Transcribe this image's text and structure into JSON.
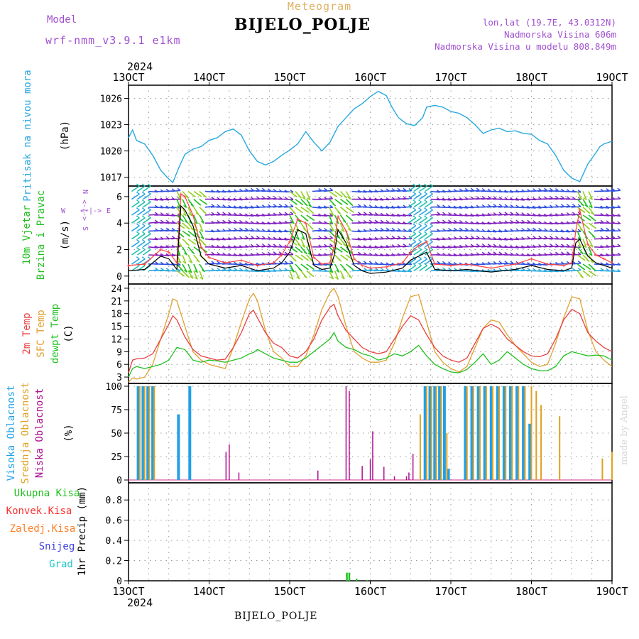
{
  "header": {
    "model_label": "Model",
    "model_name": "wrf-nmm_v3.9.1 e1km",
    "title": "Meteogram",
    "station": "BIJELO_POLJE",
    "lonlat": "lon,lat (19.7E, 43.0312N)",
    "altitude": "Nadmorska Visina 606m",
    "model_altitude": "Nadmorska Visina u modelu 808.849m"
  },
  "footer": {
    "station": "BIJELO_POLJE",
    "credit": "made by Angel"
  },
  "colors": {
    "pressure": "#29a8e0",
    "wind_speed": "#000000",
    "gust": "#ff4040",
    "t2m": "#e84040",
    "tsfc": "#e0a030",
    "dewpt": "#20c020",
    "cloud_high": "#20a0e8",
    "cloud_mid": "#e0a020",
    "cloud_low": "#b01090",
    "precip_total": "#20c020",
    "precip_conv": "#ff3030",
    "precip_frozen": "#ff7f27",
    "snow": "#4040e0",
    "hail": "#20c8c8"
  },
  "chart_data": [
    {
      "type": "line",
      "id": "pressure",
      "ylabel": "Pritisak na nivou mora",
      "unit": "(hPa)",
      "x_labels_top": [
        "13OCT",
        "14OCT",
        "15OCT",
        "16OCT",
        "17OCT",
        "18OCT",
        "19OCT"
      ],
      "x_labels_bottom": [
        "13OCT",
        "14OCT",
        "15OCT",
        "16OCT",
        "17OCT",
        "18OCT",
        "19OCT"
      ],
      "year": "2024",
      "xlim_days": [
        13,
        19
      ],
      "ylim": [
        1016,
        1027.5
      ],
      "yticks": [
        1017,
        1020,
        1023,
        1026
      ],
      "x": [
        13.0,
        13.05,
        13.1,
        13.15,
        13.2,
        13.3,
        13.4,
        13.5,
        13.55,
        13.62,
        13.7,
        13.8,
        13.9,
        14.0,
        14.1,
        14.2,
        14.3,
        14.4,
        14.5,
        14.6,
        14.7,
        14.8,
        14.9,
        15.0,
        15.1,
        15.2,
        15.3,
        15.4,
        15.5,
        15.6,
        15.7,
        15.8,
        15.9,
        16.0,
        16.1,
        16.2,
        16.27,
        16.35,
        16.45,
        16.55,
        16.65,
        16.7,
        16.8,
        16.9,
        17.0,
        17.1,
        17.2,
        17.3,
        17.4,
        17.5,
        17.6,
        17.7,
        17.8,
        17.9,
        18.0,
        18.1,
        18.2,
        18.3,
        18.4,
        18.5,
        18.6,
        18.7,
        18.8,
        18.85,
        18.9,
        19.0
      ],
      "series": [
        {
          "name": "Pritisak na nivou mora",
          "values": [
            1021.5,
            1022.4,
            1021.2,
            1021.0,
            1020.8,
            1019.5,
            1017.8,
            1016.8,
            1016.4,
            1018.0,
            1019.6,
            1020.2,
            1020.5,
            1021.2,
            1021.5,
            1022.2,
            1022.5,
            1021.8,
            1020.0,
            1018.8,
            1018.4,
            1018.8,
            1019.5,
            1020.1,
            1020.8,
            1022.2,
            1021.0,
            1020.0,
            1021.0,
            1022.8,
            1023.8,
            1024.8,
            1025.4,
            1026.2,
            1026.8,
            1026.3,
            1025.0,
            1023.8,
            1023.1,
            1022.9,
            1023.8,
            1025.0,
            1025.2,
            1025.0,
            1024.5,
            1024.3,
            1023.8,
            1023.0,
            1022.0,
            1022.4,
            1022.6,
            1022.2,
            1022.3,
            1022.0,
            1021.9,
            1021.2,
            1020.8,
            1019.5,
            1017.8,
            1016.9,
            1016.5,
            1018.5,
            1019.8,
            1020.5,
            1020.8,
            1021.1
          ]
        }
      ]
    },
    {
      "type": "line",
      "id": "wind",
      "ylabel": "10m Vjetar",
      "ylabel2": "Brzina i Pravac",
      "unit": "(m/s)",
      "compass": [
        "W",
        "<",
        "-",
        "|",
        "-",
        ">",
        "E",
        "N",
        "S"
      ],
      "ylim": [
        -0.6,
        6.8
      ],
      "yticks": [
        0,
        2,
        4,
        6
      ],
      "barb_rows": [
        0.4,
        0.9,
        1.6,
        2.2,
        2.8,
        3.4,
        4.0,
        4.6,
        5.2,
        5.8,
        6.4
      ],
      "x": [
        13.0,
        13.2,
        13.4,
        13.5,
        13.6,
        13.65,
        13.7,
        13.8,
        13.9,
        14.0,
        14.2,
        14.4,
        14.6,
        14.8,
        14.9,
        15.0,
        15.1,
        15.2,
        15.3,
        15.4,
        15.5,
        15.55,
        15.6,
        15.7,
        15.8,
        15.9,
        16.0,
        16.2,
        16.4,
        16.5,
        16.6,
        16.7,
        16.8,
        17.0,
        17.2,
        17.5,
        17.8,
        18.0,
        18.2,
        18.4,
        18.5,
        18.55,
        18.6,
        18.7,
        18.8,
        18.9,
        19.0
      ],
      "series": [
        {
          "name": "wind speed",
          "values": [
            0.4,
            0.5,
            1.5,
            1.3,
            0.5,
            5.3,
            5.0,
            3.8,
            1.5,
            0.9,
            0.6,
            0.8,
            0.4,
            0.6,
            1.0,
            1.8,
            3.5,
            3.2,
            0.8,
            0.5,
            0.6,
            1.5,
            3.5,
            2.5,
            0.8,
            0.4,
            0.2,
            0.3,
            0.6,
            1.2,
            1.5,
            1.8,
            0.5,
            0.4,
            0.5,
            0.3,
            0.5,
            0.8,
            0.5,
            0.4,
            0.6,
            2.5,
            2.8,
            1.5,
            1.0,
            0.8,
            0.6
          ]
        },
        {
          "name": "wind gust",
          "values": [
            0.8,
            0.9,
            2.0,
            1.8,
            1.0,
            6.2,
            6.0,
            4.6,
            2.2,
            1.4,
            1.0,
            1.2,
            0.8,
            1.0,
            1.6,
            2.6,
            4.3,
            4.0,
            1.4,
            0.9,
            1.0,
            2.2,
            4.5,
            3.4,
            1.3,
            0.8,
            0.6,
            0.7,
            1.0,
            1.8,
            2.3,
            2.6,
            0.9,
            0.8,
            0.9,
            0.6,
            0.9,
            1.3,
            0.9,
            0.8,
            1.0,
            3.4,
            5.0,
            2.4,
            1.6,
            1.3,
            1.0
          ]
        }
      ]
    },
    {
      "type": "line",
      "id": "temperature",
      "ylabel": "2m Temp",
      "ylabel2": "SFC Temp",
      "ylabel3": "dewpt Temp",
      "unit": "(C)",
      "ylim": [
        1.5,
        25
      ],
      "yticks": [
        3,
        6,
        9,
        12,
        15,
        18,
        21,
        24
      ],
      "x": [
        13.0,
        13.05,
        13.1,
        13.2,
        13.3,
        13.4,
        13.5,
        13.55,
        13.6,
        13.7,
        13.8,
        13.9,
        14.0,
        14.1,
        14.2,
        14.3,
        14.4,
        14.5,
        14.55,
        14.6,
        14.7,
        14.8,
        14.9,
        15.0,
        15.1,
        15.2,
        15.3,
        15.4,
        15.5,
        15.55,
        15.6,
        15.7,
        15.8,
        15.9,
        16.0,
        16.1,
        16.2,
        16.3,
        16.4,
        16.5,
        16.6,
        16.7,
        16.8,
        16.9,
        17.0,
        17.1,
        17.2,
        17.3,
        17.4,
        17.5,
        17.6,
        17.7,
        17.8,
        17.9,
        18.0,
        18.1,
        18.2,
        18.3,
        18.4,
        18.5,
        18.6,
        18.7,
        18.8,
        18.9,
        19.0
      ],
      "series": [
        {
          "name": "2m Temp",
          "values": [
            4.0,
            7.0,
            7.3,
            7.5,
            8.5,
            12.0,
            15.5,
            17.5,
            16.5,
            12.5,
            9.5,
            8.0,
            7.5,
            7.0,
            7.2,
            10.0,
            13.5,
            18.0,
            18.8,
            17.0,
            13.5,
            11.0,
            10.0,
            8.0,
            7.5,
            9.0,
            12.0,
            16.5,
            19.5,
            20.2,
            17.5,
            14.0,
            12.0,
            10.0,
            9.0,
            8.5,
            9.0,
            12.0,
            15.0,
            17.5,
            16.5,
            13.0,
            10.0,
            8.0,
            7.0,
            6.5,
            7.5,
            11.0,
            14.5,
            15.5,
            14.5,
            12.0,
            10.5,
            9.0,
            8.0,
            7.8,
            8.5,
            12.0,
            16.5,
            19.0,
            18.0,
            13.5,
            11.5,
            10.0,
            9.0
          ]
        },
        {
          "name": "SFC Temp",
          "values": [
            1.8,
            2.8,
            2.5,
            3.0,
            6.0,
            12.0,
            18.0,
            21.5,
            21.0,
            15.0,
            9.0,
            7.0,
            6.0,
            5.5,
            5.0,
            10.0,
            16.0,
            21.5,
            22.8,
            21.0,
            14.0,
            9.0,
            7.5,
            5.5,
            5.5,
            8.0,
            13.0,
            19.0,
            23.0,
            24.0,
            22.0,
            15.0,
            9.0,
            7.5,
            6.5,
            6.5,
            7.0,
            11.0,
            17.0,
            22.0,
            22.5,
            16.0,
            9.0,
            6.5,
            5.0,
            4.2,
            5.5,
            10.0,
            14.5,
            16.5,
            16.0,
            13.0,
            10.5,
            8.5,
            6.5,
            5.5,
            6.0,
            11.0,
            17.0,
            22.0,
            21.5,
            14.0,
            9.0,
            7.0,
            5.5
          ]
        },
        {
          "name": "dewpt Temp",
          "values": [
            3.0,
            5.0,
            5.5,
            5.0,
            5.5,
            6.0,
            7.0,
            8.5,
            10.0,
            9.5,
            7.0,
            6.5,
            7.0,
            6.8,
            6.5,
            7.0,
            7.5,
            8.5,
            8.8,
            9.5,
            8.5,
            7.5,
            7.0,
            6.5,
            6.5,
            7.5,
            9.0,
            10.5,
            12.0,
            13.5,
            11.5,
            10.0,
            9.5,
            8.5,
            8.0,
            7.0,
            7.5,
            8.5,
            8.0,
            9.0,
            10.5,
            8.0,
            6.0,
            5.0,
            4.2,
            4.0,
            4.8,
            6.5,
            8.5,
            6.0,
            7.0,
            9.0,
            7.5,
            6.0,
            5.0,
            4.5,
            4.5,
            5.5,
            8.0,
            9.0,
            8.5,
            8.0,
            8.2,
            8.0,
            7.0
          ]
        }
      ]
    },
    {
      "type": "bar",
      "id": "cloud",
      "ylabel": "Visoka Oblacnost",
      "ylabel2": "Srednja Oblacnost",
      "ylabel3": "Niska Oblacnost",
      "unit": "(%)",
      "ylim": [
        -3,
        103
      ],
      "yticks": [
        0,
        25,
        50,
        75,
        100
      ],
      "high": [
        [
          13.12,
          100
        ],
        [
          13.18,
          100
        ],
        [
          13.24,
          100
        ],
        [
          13.3,
          100
        ],
        [
          13.62,
          70
        ],
        [
          13.76,
          100
        ],
        [
          16.68,
          100
        ],
        [
          16.74,
          100
        ],
        [
          16.8,
          100
        ],
        [
          16.86,
          100
        ],
        [
          16.92,
          100
        ],
        [
          16.97,
          12
        ],
        [
          17.18,
          100
        ],
        [
          17.26,
          100
        ],
        [
          17.34,
          100
        ],
        [
          17.42,
          100
        ],
        [
          17.5,
          100
        ],
        [
          17.58,
          100
        ],
        [
          17.66,
          100
        ],
        [
          17.74,
          100
        ],
        [
          17.82,
          100
        ],
        [
          17.9,
          100
        ],
        [
          17.98,
          60
        ]
      ],
      "mid": [
        [
          13.14,
          100
        ],
        [
          13.2,
          100
        ],
        [
          13.26,
          100
        ],
        [
          13.32,
          100
        ],
        [
          16.62,
          70
        ],
        [
          16.7,
          100
        ],
        [
          16.76,
          100
        ],
        [
          16.82,
          100
        ],
        [
          16.88,
          100
        ],
        [
          16.95,
          50
        ],
        [
          17.2,
          100
        ],
        [
          17.28,
          100
        ],
        [
          17.36,
          100
        ],
        [
          17.44,
          100
        ],
        [
          17.52,
          100
        ],
        [
          17.6,
          100
        ],
        [
          17.68,
          100
        ],
        [
          17.76,
          100
        ],
        [
          17.84,
          100
        ],
        [
          17.92,
          100
        ],
        [
          18.0,
          100
        ],
        [
          18.06,
          95
        ],
        [
          18.12,
          80
        ],
        [
          18.35,
          68
        ],
        [
          19.0,
          30
        ],
        [
          18.88,
          23
        ]
      ],
      "low": [
        [
          14.21,
          30
        ],
        [
          14.25,
          38
        ],
        [
          14.37,
          8
        ],
        [
          15.35,
          10
        ],
        [
          15.7,
          100
        ],
        [
          15.74,
          95
        ],
        [
          15.9,
          15
        ],
        [
          16.0,
          22
        ],
        [
          16.03,
          52
        ],
        [
          16.17,
          14
        ],
        [
          16.3,
          4
        ],
        [
          16.45,
          4
        ],
        [
          16.48,
          8
        ],
        [
          16.53,
          28
        ]
      ]
    },
    {
      "type": "bar",
      "id": "precip",
      "ylabel": "1hr Precip",
      "unit": "(mm)",
      "legend": [
        "Ukupna Kisa",
        "Konvek.Kisa",
        "Zaledj.Kisa",
        "Snijeg",
        "Grad"
      ],
      "ylim": [
        0,
        0.97
      ],
      "yticks": [
        0,
        0.2,
        0.4,
        0.6,
        0.8
      ],
      "total": [
        [
          15.71,
          0.08
        ],
        [
          15.74,
          0.08
        ],
        [
          15.83,
          0.02
        ],
        [
          15.96,
          0.005
        ]
      ]
    }
  ]
}
